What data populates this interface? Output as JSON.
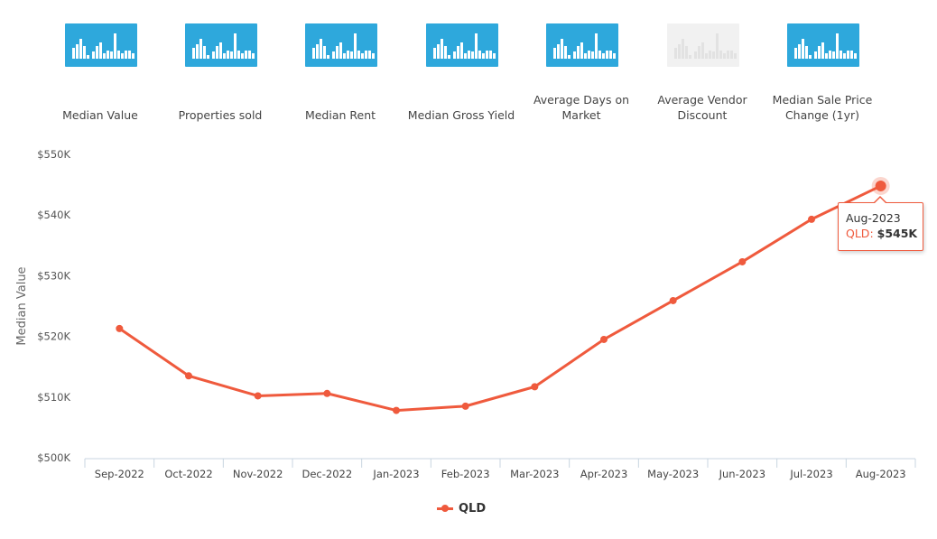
{
  "tabs": [
    {
      "label": "Median Value",
      "icon": "bar-chart-icon",
      "active": true
    },
    {
      "label": "Properties sold",
      "icon": "bar-chart-icon",
      "active": true
    },
    {
      "label": "Median Rent",
      "icon": "bar-chart-icon",
      "active": true
    },
    {
      "label": "Median Gross Yield",
      "icon": "bar-chart-icon",
      "active": true
    },
    {
      "label": "Average Days on Market",
      "icon": "bar-chart-icon",
      "active": true
    },
    {
      "label": "Average Vendor Discount",
      "icon": "bar-chart-icon",
      "active": false
    },
    {
      "label": "Median Sale Price Change (1yr)",
      "icon": "bar-chart-icon",
      "active": true
    }
  ],
  "colors": {
    "tab_active": "#2ea8dc",
    "tab_disabled": "#f1f1f1",
    "series": "#ef5a3d",
    "axis": "#c8d5e0",
    "text": "#444444"
  },
  "chart_data": {
    "type": "line",
    "categories": [
      "Sep-2022",
      "Oct-2022",
      "Nov-2022",
      "Dec-2022",
      "Jan-2023",
      "Feb-2023",
      "Mar-2023",
      "Apr-2023",
      "May-2023",
      "Jun-2023",
      "Jul-2023",
      "Aug-2023"
    ],
    "series": [
      {
        "name": "QLD",
        "values": [
          521300,
          513500,
          510200,
          510600,
          507800,
          508500,
          511700,
          519500,
          525900,
          532300,
          539300,
          544800
        ]
      }
    ],
    "ylabel": "Median Value",
    "ylim": [
      500000,
      550000
    ],
    "yticks": [
      "$500K",
      "$510K",
      "$520K",
      "$530K",
      "$540K",
      "$550K"
    ],
    "grid": false,
    "legend": "bottom-center",
    "tooltip": {
      "title": "Aug-2023",
      "series": "QLD",
      "value": "$545K"
    }
  }
}
